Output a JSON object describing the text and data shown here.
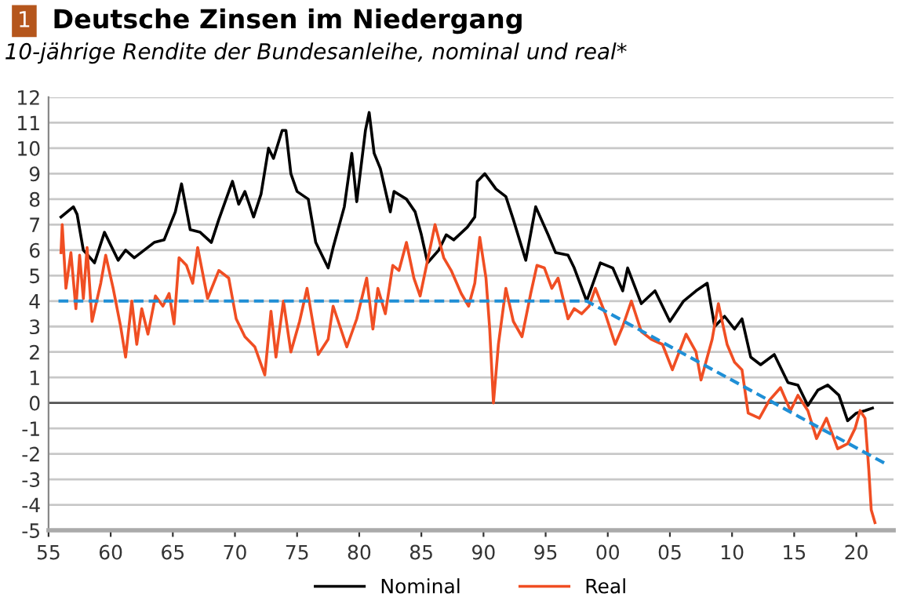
{
  "chart_data": {
    "type": "line",
    "title": "Deutsche Zinsen im Niedergang",
    "subtitle": "10-jährige Rendite der Bundesanleihe, nominal und real*",
    "annotations": [
      "1"
    ],
    "xlim": [
      1955,
      2023
    ],
    "xticks": [
      {
        "value": 1955,
        "label": "55"
      },
      {
        "value": 1960,
        "label": "60"
      },
      {
        "value": 1965,
        "label": "65"
      },
      {
        "value": 1970,
        "label": "70"
      },
      {
        "value": 1975,
        "label": "75"
      },
      {
        "value": 1980,
        "label": "80"
      },
      {
        "value": 1985,
        "label": "85"
      },
      {
        "value": 1990,
        "label": "90"
      },
      {
        "value": 1995,
        "label": "95"
      },
      {
        "value": 2000,
        "label": "00"
      },
      {
        "value": 2005,
        "label": "05"
      },
      {
        "value": 2010,
        "label": "10"
      },
      {
        "value": 2015,
        "label": "15"
      },
      {
        "value": 2020,
        "label": "20"
      }
    ],
    "ylim": [
      -5,
      12
    ],
    "yticks": [
      -5,
      -4,
      -3,
      -2,
      -1,
      0,
      1,
      2,
      3,
      4,
      5,
      6,
      7,
      8,
      9,
      10,
      11,
      12
    ],
    "grid": "y",
    "legend": "bottom",
    "ref_lines": [
      {
        "axis": "y",
        "value": 0,
        "label": null,
        "color": "#555555"
      }
    ],
    "series": [
      {
        "name": "Nominal",
        "color": "#000000",
        "x": [
          1956.0,
          1957.0,
          1957.3,
          1957.8,
          1958.7,
          1959.5,
          1960.6,
          1961.2,
          1961.9,
          1963.5,
          1964.3,
          1965.2,
          1965.7,
          1966.4,
          1967.2,
          1968.1,
          1968.7,
          1969.8,
          1970.3,
          1970.8,
          1971.5,
          1972.1,
          1972.7,
          1973.1,
          1973.8,
          1974.1,
          1974.5,
          1975.0,
          1975.9,
          1976.5,
          1977.5,
          1977.9,
          1978.8,
          1979.4,
          1979.8,
          1980.5,
          1980.8,
          1981.2,
          1981.7,
          1982.5,
          1982.8,
          1983.8,
          1984.5,
          1985.0,
          1985.5,
          1986.4,
          1987.0,
          1987.6,
          1988.7,
          1989.3,
          1989.5,
          1990.1,
          1991.0,
          1991.8,
          1992.4,
          1993.4,
          1994.2,
          1995.2,
          1995.8,
          1996.8,
          1997.3,
          1998.3,
          1999.4,
          2000.4,
          2001.2,
          2001.6,
          2002.7,
          2003.8,
          2005.0,
          2006.1,
          2007.1,
          2008.0,
          2008.6,
          2009.4,
          2010.2,
          2010.8,
          2011.5,
          2012.3,
          2013.4,
          2014.5,
          2015.3,
          2016.1,
          2016.9,
          2017.7,
          2018.6,
          2019.3,
          2020.0,
          2020.7,
          2021.3
        ],
        "values": [
          7.3,
          7.7,
          7.4,
          6.0,
          5.5,
          6.7,
          5.6,
          6.0,
          5.7,
          6.3,
          6.4,
          7.5,
          8.6,
          6.8,
          6.7,
          6.3,
          7.2,
          8.7,
          7.8,
          8.3,
          7.3,
          8.2,
          10.0,
          9.6,
          10.7,
          10.7,
          9.0,
          8.3,
          8.0,
          6.3,
          5.3,
          6.1,
          7.7,
          9.8,
          7.9,
          10.7,
          11.4,
          9.8,
          9.2,
          7.5,
          8.3,
          8.0,
          7.5,
          6.6,
          5.5,
          6.0,
          6.6,
          6.4,
          6.9,
          7.3,
          8.7,
          9.0,
          8.4,
          8.1,
          7.2,
          5.6,
          7.7,
          6.6,
          5.9,
          5.8,
          5.3,
          4.0,
          5.5,
          5.3,
          4.4,
          5.3,
          3.9,
          4.4,
          3.2,
          4.0,
          4.4,
          4.7,
          3.0,
          3.4,
          2.9,
          3.3,
          1.8,
          1.5,
          1.9,
          0.8,
          0.7,
          -0.1,
          0.5,
          0.7,
          0.3,
          -0.7,
          -0.4,
          -0.3,
          -0.2
        ]
      },
      {
        "name": "Real",
        "color": "#f04e23",
        "x": [
          1956.0,
          1956.1,
          1956.4,
          1956.8,
          1957.2,
          1957.5,
          1957.8,
          1958.1,
          1958.5,
          1959.2,
          1959.6,
          1960.2,
          1960.8,
          1961.2,
          1961.7,
          1962.1,
          1962.5,
          1963.0,
          1963.6,
          1964.2,
          1964.7,
          1965.1,
          1965.5,
          1966.1,
          1966.6,
          1967.0,
          1967.8,
          1968.7,
          1969.5,
          1970.1,
          1970.8,
          1971.6,
          1972.4,
          1972.9,
          1973.3,
          1973.9,
          1974.5,
          1975.2,
          1975.8,
          1976.7,
          1977.5,
          1977.9,
          1979.0,
          1979.8,
          1980.6,
          1981.1,
          1981.5,
          1982.1,
          1982.7,
          1983.2,
          1983.8,
          1984.4,
          1984.9,
          1985.5,
          1986.1,
          1986.8,
          1987.4,
          1988.2,
          1988.8,
          1989.3,
          1989.7,
          1990.2,
          1990.5,
          1990.8,
          1991.2,
          1991.8,
          1992.4,
          1993.1,
          1993.8,
          1994.3,
          1994.9,
          1995.5,
          1996.0,
          1996.8,
          1997.3,
          1997.9,
          1998.5,
          1999.0,
          1999.8,
          2000.6,
          2001.2,
          2001.9,
          2002.7,
          2003.5,
          2004.4,
          2005.2,
          2006.3,
          2007.1,
          2007.5,
          2008.4,
          2008.9,
          2009.6,
          2010.2,
          2010.8,
          2011.3,
          2012.2,
          2013.0,
          2013.9,
          2014.7,
          2015.3,
          2016.1,
          2016.8,
          2017.6,
          2018.5,
          2019.3,
          2019.9,
          2020.3,
          2020.7,
          2021.0,
          2021.2,
          2021.5
        ],
        "values": [
          5.9,
          7.0,
          4.5,
          5.9,
          3.7,
          5.8,
          4.1,
          6.1,
          3.2,
          4.7,
          5.8,
          4.5,
          3.0,
          1.8,
          4.0,
          2.3,
          3.7,
          2.7,
          4.2,
          3.8,
          4.3,
          3.1,
          5.7,
          5.4,
          4.7,
          6.1,
          4.1,
          5.2,
          4.9,
          3.3,
          2.6,
          2.2,
          1.1,
          3.6,
          1.8,
          4.0,
          2.0,
          3.2,
          4.5,
          1.9,
          2.5,
          3.8,
          2.2,
          3.3,
          4.9,
          2.9,
          4.5,
          3.5,
          5.4,
          5.2,
          6.3,
          4.9,
          4.2,
          5.6,
          7.0,
          5.7,
          5.2,
          4.3,
          3.8,
          4.7,
          6.5,
          4.9,
          2.9,
          0.0,
          2.3,
          4.5,
          3.2,
          2.6,
          4.3,
          5.4,
          5.3,
          4.5,
          4.9,
          3.3,
          3.7,
          3.5,
          3.8,
          4.5,
          3.5,
          2.3,
          3.0,
          4.0,
          2.8,
          2.5,
          2.3,
          1.3,
          2.7,
          2.0,
          0.9,
          2.5,
          3.9,
          2.3,
          1.6,
          1.3,
          -0.4,
          -0.6,
          0.1,
          0.6,
          -0.3,
          0.3,
          -0.3,
          -1.4,
          -0.6,
          -1.8,
          -1.6,
          -1.0,
          -0.3,
          -0.6,
          -2.6,
          -4.2,
          -4.7
        ]
      },
      {
        "color": "#1f8fd6",
        "line_style": "dashed",
        "x": [
          1955.8,
          1998.3,
          2022.4
        ],
        "values": [
          4,
          4,
          -2.4
        ]
      }
    ]
  }
}
